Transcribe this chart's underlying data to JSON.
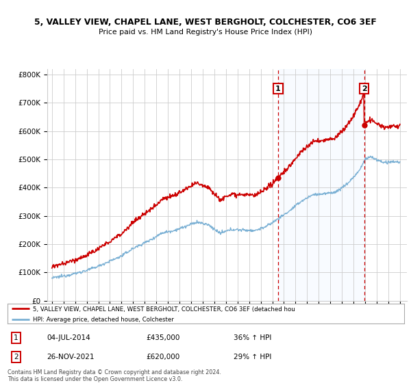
{
  "title_line1": "5, VALLEY VIEW, CHAPEL LANE, WEST BERGHOLT, COLCHESTER, CO6 3EF",
  "title_line2": "Price paid vs. HM Land Registry's House Price Index (HPI)",
  "legend_line1": "5, VALLEY VIEW, CHAPEL LANE, WEST BERGHOLT, COLCHESTER, CO6 3EF (detached hou",
  "legend_line2": "HPI: Average price, detached house, Colchester",
  "sale1_date": "04-JUL-2014",
  "sale1_price": "£435,000",
  "sale1_hpi": "36% ↑ HPI",
  "sale1_year": 2014.5,
  "sale1_value": 435000,
  "sale2_date": "26-NOV-2021",
  "sale2_price": "£620,000",
  "sale2_hpi": "29% ↑ HPI",
  "sale2_year": 2021.92,
  "sale2_value": 620000,
  "red_line_color": "#cc0000",
  "blue_line_color": "#7ab0d4",
  "shade_color": "#ddeeff",
  "background_color": "#ffffff",
  "grid_color": "#cccccc",
  "footer_text": "Contains HM Land Registry data © Crown copyright and database right 2024.\nThis data is licensed under the Open Government Licence v3.0.",
  "ylim": [
    0,
    820000
  ],
  "yticks": [
    0,
    100000,
    200000,
    300000,
    400000,
    500000,
    600000,
    700000,
    800000
  ],
  "ytick_labels": [
    "£0",
    "£100K",
    "£200K",
    "£300K",
    "£400K",
    "£500K",
    "£600K",
    "£700K",
    "£800K"
  ],
  "xstart": 1995,
  "xend": 2025
}
